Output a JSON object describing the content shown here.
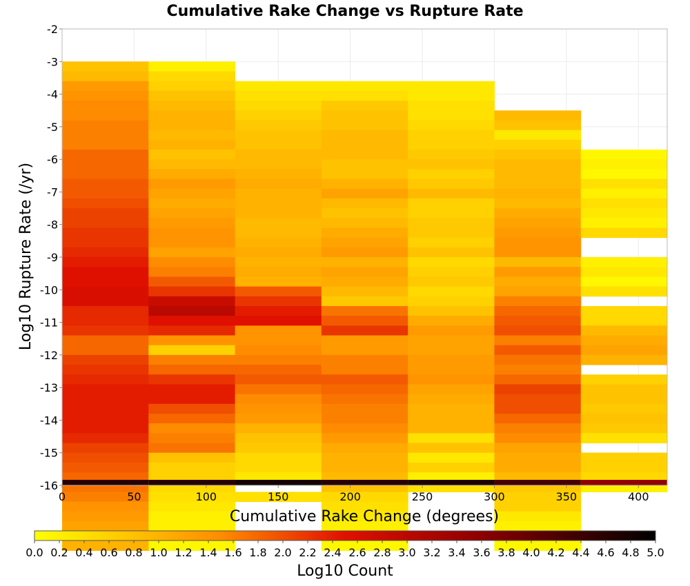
{
  "chart_data": {
    "type": "heatmap",
    "title": "Cumulative Rake Change vs Rupture Rate",
    "xlabel": "Cumulative Rake Change (degrees)",
    "ylabel": "Log10 Rupture Rate (/yr)",
    "colorbar_label": "Log10 Count",
    "xlim": [
      0,
      420
    ],
    "ylim": [
      -16,
      -2
    ],
    "x_ticks": [
      0,
      50,
      100,
      150,
      200,
      250,
      300,
      350,
      400
    ],
    "y_ticks": [
      -2,
      -3,
      -4,
      -5,
      -6,
      -7,
      -8,
      -9,
      -10,
      -11,
      -12,
      -13,
      -14,
      -15,
      -16
    ],
    "colorbar_range": [
      0,
      5
    ],
    "colorbar_ticks": [
      "0.0",
      "0.2",
      "0.4",
      "0.6",
      "0.8",
      "1.0",
      "1.2",
      "1.4",
      "1.6",
      "1.8",
      "2.0",
      "2.2",
      "2.4",
      "2.6",
      "2.8",
      "3.0",
      "3.2",
      "3.4",
      "3.6",
      "3.8",
      "4.0",
      "4.2",
      "4.4",
      "4.6",
      "4.8",
      "5.0"
    ],
    "colormap": [
      "#ffff00",
      "#ff8c00",
      "#e01000",
      "#8b0000",
      "#000000"
    ],
    "grid": true,
    "x_bin_starts": [
      0,
      60,
      120,
      180,
      240,
      300,
      360
    ],
    "x_bin_width": 60,
    "y_bin_height": 0.3,
    "y_bin_top": -3.0,
    "column_log_counts": [
      [
        0.8,
        0.9,
        1.3,
        1.4,
        1.5,
        1.5,
        1.6,
        1.6,
        1.6,
        1.8,
        1.8,
        1.8,
        1.9,
        1.9,
        2.0,
        2.1,
        2.1,
        2.2,
        2.2,
        2.3,
        2.4,
        2.5,
        2.5,
        2.6,
        2.6,
        2.3,
        2.3,
        2.2,
        1.8,
        1.8,
        2.1,
        2.2,
        2.3,
        2.4,
        2.4,
        2.4,
        2.4,
        2.4,
        2.3,
        2.1,
        2.0,
        1.9,
        1.8,
        1.7,
        1.6,
        1.4,
        1.3,
        1.2,
        1.1,
        1.0,
        null,
        -1
      ],
      [
        0.2,
        0.5,
        0.6,
        0.8,
        0.9,
        1.0,
        1.0,
        0.9,
        1.0,
        0.8,
        0.9,
        1.1,
        1.3,
        1.2,
        1.1,
        1.2,
        1.3,
        1.4,
        1.4,
        1.2,
        1.5,
        1.6,
        1.9,
        2.2,
        2.8,
        3.0,
        2.5,
        2.3,
        1.4,
        0.6,
        1.6,
        1.8,
        2.2,
        2.4,
        2.4,
        2.0,
        1.8,
        1.5,
        1.6,
        1.7,
        0.8,
        0.6,
        0.6,
        0.5,
        0.4,
        0.3,
        0.2,
        0.2,
        0.2,
        0.1,
        null,
        -1
      ],
      [
        null,
        null,
        0.3,
        0.4,
        0.5,
        0.6,
        0.7,
        0.8,
        0.8,
        0.9,
        0.9,
        1.0,
        1.1,
        1.0,
        1.0,
        1.0,
        0.9,
        0.9,
        1.0,
        1.1,
        1.0,
        1.1,
        1.0,
        1.9,
        2.2,
        2.4,
        2.5,
        1.4,
        1.4,
        1.5,
        1.6,
        1.8,
        1.9,
        1.7,
        1.5,
        1.4,
        1.3,
        1.0,
        0.8,
        0.7,
        0.5,
        0.5,
        0.3,
        null,
        0.4,
        null,
        null,
        null,
        null,
        null,
        null,
        null
      ],
      [
        null,
        null,
        0.3,
        0.4,
        0.7,
        0.8,
        0.8,
        0.9,
        0.9,
        0.9,
        0.8,
        0.8,
        1.0,
        1.2,
        0.9,
        0.8,
        0.9,
        1.1,
        1.2,
        1.3,
        1.0,
        1.2,
        1.1,
        0.9,
        0.7,
        1.7,
        1.9,
        2.2,
        1.3,
        1.3,
        1.6,
        1.6,
        1.9,
        1.8,
        1.7,
        1.6,
        1.6,
        1.5,
        1.3,
        1.1,
        1.0,
        1.0,
        0.9,
        0.8,
        0.5,
        0.4,
        0.3,
        0.2,
        0.1,
        0.1,
        null,
        -1
      ],
      [
        null,
        null,
        0.3,
        0.3,
        0.4,
        0.4,
        0.5,
        0.6,
        0.6,
        0.7,
        0.8,
        0.6,
        0.7,
        0.9,
        0.6,
        0.6,
        0.7,
        0.7,
        0.6,
        0.8,
        0.5,
        0.6,
        0.7,
        0.5,
        0.6,
        0.8,
        1.1,
        1.3,
        1.2,
        1.2,
        1.3,
        1.3,
        1.4,
        1.2,
        1.1,
        1.0,
        1.0,
        1.0,
        0.4,
        0.8,
        0.3,
        0.6,
        0.2,
        0.4,
        null,
        null,
        null,
        null,
        null,
        null,
        null,
        -1
      ],
      [
        null,
        null,
        null,
        null,
        null,
        0.9,
        0.8,
        0.3,
        0.6,
        0.8,
        0.9,
        0.9,
        0.9,
        1.0,
        0.9,
        1.1,
        1.2,
        1.3,
        1.4,
        1.4,
        0.9,
        1.3,
        1.1,
        1.2,
        1.6,
        1.8,
        1.9,
        2.0,
        1.6,
        1.9,
        1.7,
        1.6,
        1.8,
        2.1,
        2.0,
        2.0,
        1.8,
        1.6,
        1.5,
        1.2,
        1.1,
        1.1,
        0.9,
        0.7,
        0.6,
        0.6,
        0.3,
        0.2,
        0.3,
        0.1,
        null,
        -1
      ],
      [
        null,
        null,
        null,
        null,
        null,
        null,
        null,
        null,
        null,
        0.1,
        0.2,
        0.1,
        0.4,
        0.2,
        0.4,
        0.3,
        0.2,
        0.5,
        null,
        null,
        0.2,
        0.3,
        0.1,
        0.4,
        null,
        0.5,
        0.5,
        0.9,
        1.1,
        1.2,
        1.0,
        null,
        0.6,
        0.8,
        0.8,
        0.7,
        0.8,
        0.7,
        0.4,
        null,
        0.6,
        0.6,
        0.5,
        0.2,
        null,
        null,
        null,
        null,
        null,
        null,
        null,
        -1
      ]
    ],
    "bottom_row_log_counts": [
      4.6,
      4.6,
      4.8,
      4.6,
      4.7,
      4.3,
      3.5
    ]
  }
}
